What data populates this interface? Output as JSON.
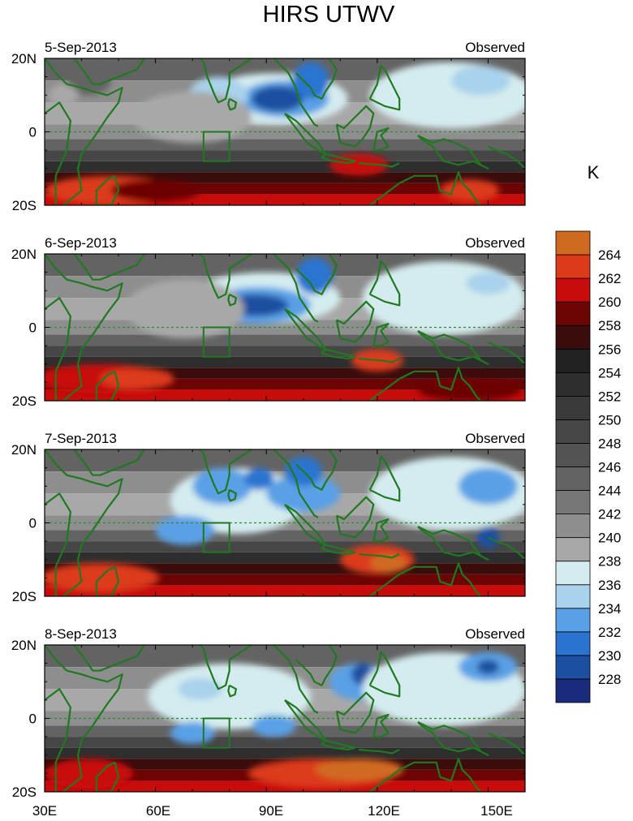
{
  "chart_data": {
    "type": "heatmap",
    "title": "HIRS UTWV",
    "units": "K",
    "x_ticks": [
      "30E",
      "60E",
      "90E",
      "120E",
      "150E"
    ],
    "x_tick_values": [
      30,
      60,
      90,
      120,
      150
    ],
    "xlim": [
      30,
      160
    ],
    "ylim": [
      -20,
      20
    ],
    "y_ticks": [
      "20N",
      "0",
      "20S"
    ],
    "y_tick_values": [
      20,
      0,
      -20
    ],
    "box_region": {
      "lon": [
        73,
        80
      ],
      "lat": [
        -8,
        0
      ]
    },
    "panels": [
      {
        "date": "5-Sep-2013",
        "label": "Observed",
        "features": [
          {
            "lon": 92,
            "lat": 9,
            "rx": 20,
            "ry": 7,
            "v": 236
          },
          {
            "lon": 95,
            "lat": 9,
            "rx": 12,
            "ry": 5,
            "v": 232
          },
          {
            "lon": 93,
            "lat": 9,
            "rx": 7,
            "ry": 3.5,
            "v": 228
          },
          {
            "lon": 77,
            "lat": 10,
            "rx": 8,
            "ry": 5,
            "v": 234
          },
          {
            "lon": 102,
            "lat": 14,
            "rx": 5,
            "ry": 5,
            "v": 230
          },
          {
            "lon": 70,
            "lat": 4,
            "rx": 16,
            "ry": 7,
            "v": 238
          },
          {
            "lon": 140,
            "lat": 10,
            "rx": 22,
            "ry": 9,
            "v": 236
          },
          {
            "lon": 148,
            "lat": 14,
            "rx": 8,
            "ry": 4,
            "v": 234
          },
          {
            "lon": 42,
            "lat": 14,
            "rx": 6,
            "ry": 4,
            "v": 244
          },
          {
            "lon": 35,
            "lat": 10,
            "rx": 4,
            "ry": 3,
            "v": 238
          },
          {
            "lon": 48,
            "lat": -16,
            "rx": 18,
            "ry": 4,
            "v": 262
          },
          {
            "lon": 60,
            "lat": -16,
            "rx": 12,
            "ry": 3,
            "v": 258
          },
          {
            "lon": 115,
            "lat": -9,
            "rx": 8,
            "ry": 3,
            "v": 260
          },
          {
            "lon": 145,
            "lat": -16,
            "rx": 8,
            "ry": 3,
            "v": 262
          }
        ]
      },
      {
        "date": "6-Sep-2013",
        "label": "Observed",
        "features": [
          {
            "lon": 90,
            "lat": 8,
            "rx": 20,
            "ry": 7,
            "v": 236
          },
          {
            "lon": 88,
            "lat": 6,
            "rx": 14,
            "ry": 5,
            "v": 232
          },
          {
            "lon": 87,
            "lat": 6,
            "rx": 9,
            "ry": 3,
            "v": 228
          },
          {
            "lon": 103,
            "lat": 14,
            "rx": 5,
            "ry": 5,
            "v": 230
          },
          {
            "lon": 68,
            "lat": 5,
            "rx": 16,
            "ry": 8,
            "v": 238
          },
          {
            "lon": 138,
            "lat": 8,
            "rx": 22,
            "ry": 10,
            "v": 236
          },
          {
            "lon": 150,
            "lat": 12,
            "rx": 6,
            "ry": 3,
            "v": 234
          },
          {
            "lon": 45,
            "lat": -14,
            "rx": 18,
            "ry": 4,
            "v": 260
          },
          {
            "lon": 55,
            "lat": -14,
            "rx": 10,
            "ry": 3,
            "v": 262
          },
          {
            "lon": 120,
            "lat": -9,
            "rx": 7,
            "ry": 3,
            "v": 262
          },
          {
            "lon": 145,
            "lat": -17,
            "rx": 14,
            "ry": 3,
            "v": 258
          }
        ]
      },
      {
        "date": "7-Sep-2013",
        "label": "Observed",
        "features": [
          {
            "lon": 82,
            "lat": 6,
            "rx": 18,
            "ry": 9,
            "v": 236
          },
          {
            "lon": 78,
            "lat": 10,
            "rx": 8,
            "ry": 5,
            "v": 232
          },
          {
            "lon": 68,
            "lat": -2,
            "rx": 8,
            "ry": 4,
            "v": 232
          },
          {
            "lon": 100,
            "lat": 8,
            "rx": 10,
            "ry": 5,
            "v": 232
          },
          {
            "lon": 100,
            "lat": 14,
            "rx": 5,
            "ry": 4,
            "v": 230
          },
          {
            "lon": 88,
            "lat": 12,
            "rx": 4,
            "ry": 3,
            "v": 230
          },
          {
            "lon": 140,
            "lat": 8,
            "rx": 22,
            "ry": 10,
            "v": 236
          },
          {
            "lon": 150,
            "lat": 10,
            "rx": 8,
            "ry": 5,
            "v": 232
          },
          {
            "lon": 150,
            "lat": -4,
            "rx": 3,
            "ry": 3,
            "v": 228
          },
          {
            "lon": 45,
            "lat": -15,
            "rx": 16,
            "ry": 4,
            "v": 262
          },
          {
            "lon": 120,
            "lat": -10,
            "rx": 10,
            "ry": 4,
            "v": 262
          },
          {
            "lon": 123,
            "lat": -11,
            "rx": 5,
            "ry": 2.5,
            "v": 264
          }
        ]
      },
      {
        "date": "8-Sep-2013",
        "label": "Observed",
        "features": [
          {
            "lon": 80,
            "lat": 6,
            "rx": 22,
            "ry": 9,
            "v": 236
          },
          {
            "lon": 72,
            "lat": 8,
            "rx": 6,
            "ry": 3,
            "v": 234
          },
          {
            "lon": 70,
            "lat": -4,
            "rx": 6,
            "ry": 3,
            "v": 232
          },
          {
            "lon": 92,
            "lat": -2,
            "rx": 6,
            "ry": 3,
            "v": 232
          },
          {
            "lon": 115,
            "lat": 10,
            "rx": 8,
            "ry": 5,
            "v": 232
          },
          {
            "lon": 116,
            "lat": 12,
            "rx": 3,
            "ry": 3,
            "v": 228
          },
          {
            "lon": 138,
            "lat": 8,
            "rx": 22,
            "ry": 10,
            "v": 236
          },
          {
            "lon": 150,
            "lat": 14,
            "rx": 8,
            "ry": 4,
            "v": 232
          },
          {
            "lon": 150,
            "lat": 14,
            "rx": 3,
            "ry": 2,
            "v": 228
          },
          {
            "lon": 105,
            "lat": -15,
            "rx": 20,
            "ry": 4,
            "v": 262
          },
          {
            "lon": 115,
            "lat": -14,
            "rx": 12,
            "ry": 3,
            "v": 264
          },
          {
            "lon": 42,
            "lat": -15,
            "rx": 12,
            "ry": 4,
            "v": 260
          }
        ]
      }
    ],
    "colorbar": {
      "levels": [
        228,
        230,
        232,
        234,
        236,
        238,
        240,
        242,
        244,
        246,
        248,
        250,
        252,
        254,
        256,
        258,
        260,
        262,
        264
      ],
      "colors": [
        "#1a2a7c",
        "#1c4fa0",
        "#2a74d0",
        "#5aa0e6",
        "#a9d2ec",
        "#d4ecef",
        "#a8a8a8",
        "#8e8e8e",
        "#777777",
        "#636363",
        "#535353",
        "#464646",
        "#3a3a3a",
        "#2e2e2e",
        "#222222",
        "#3a0c0c",
        "#6c0404",
        "#c80b0b",
        "#dc3a1a",
        "#d06a20"
      ]
    }
  }
}
